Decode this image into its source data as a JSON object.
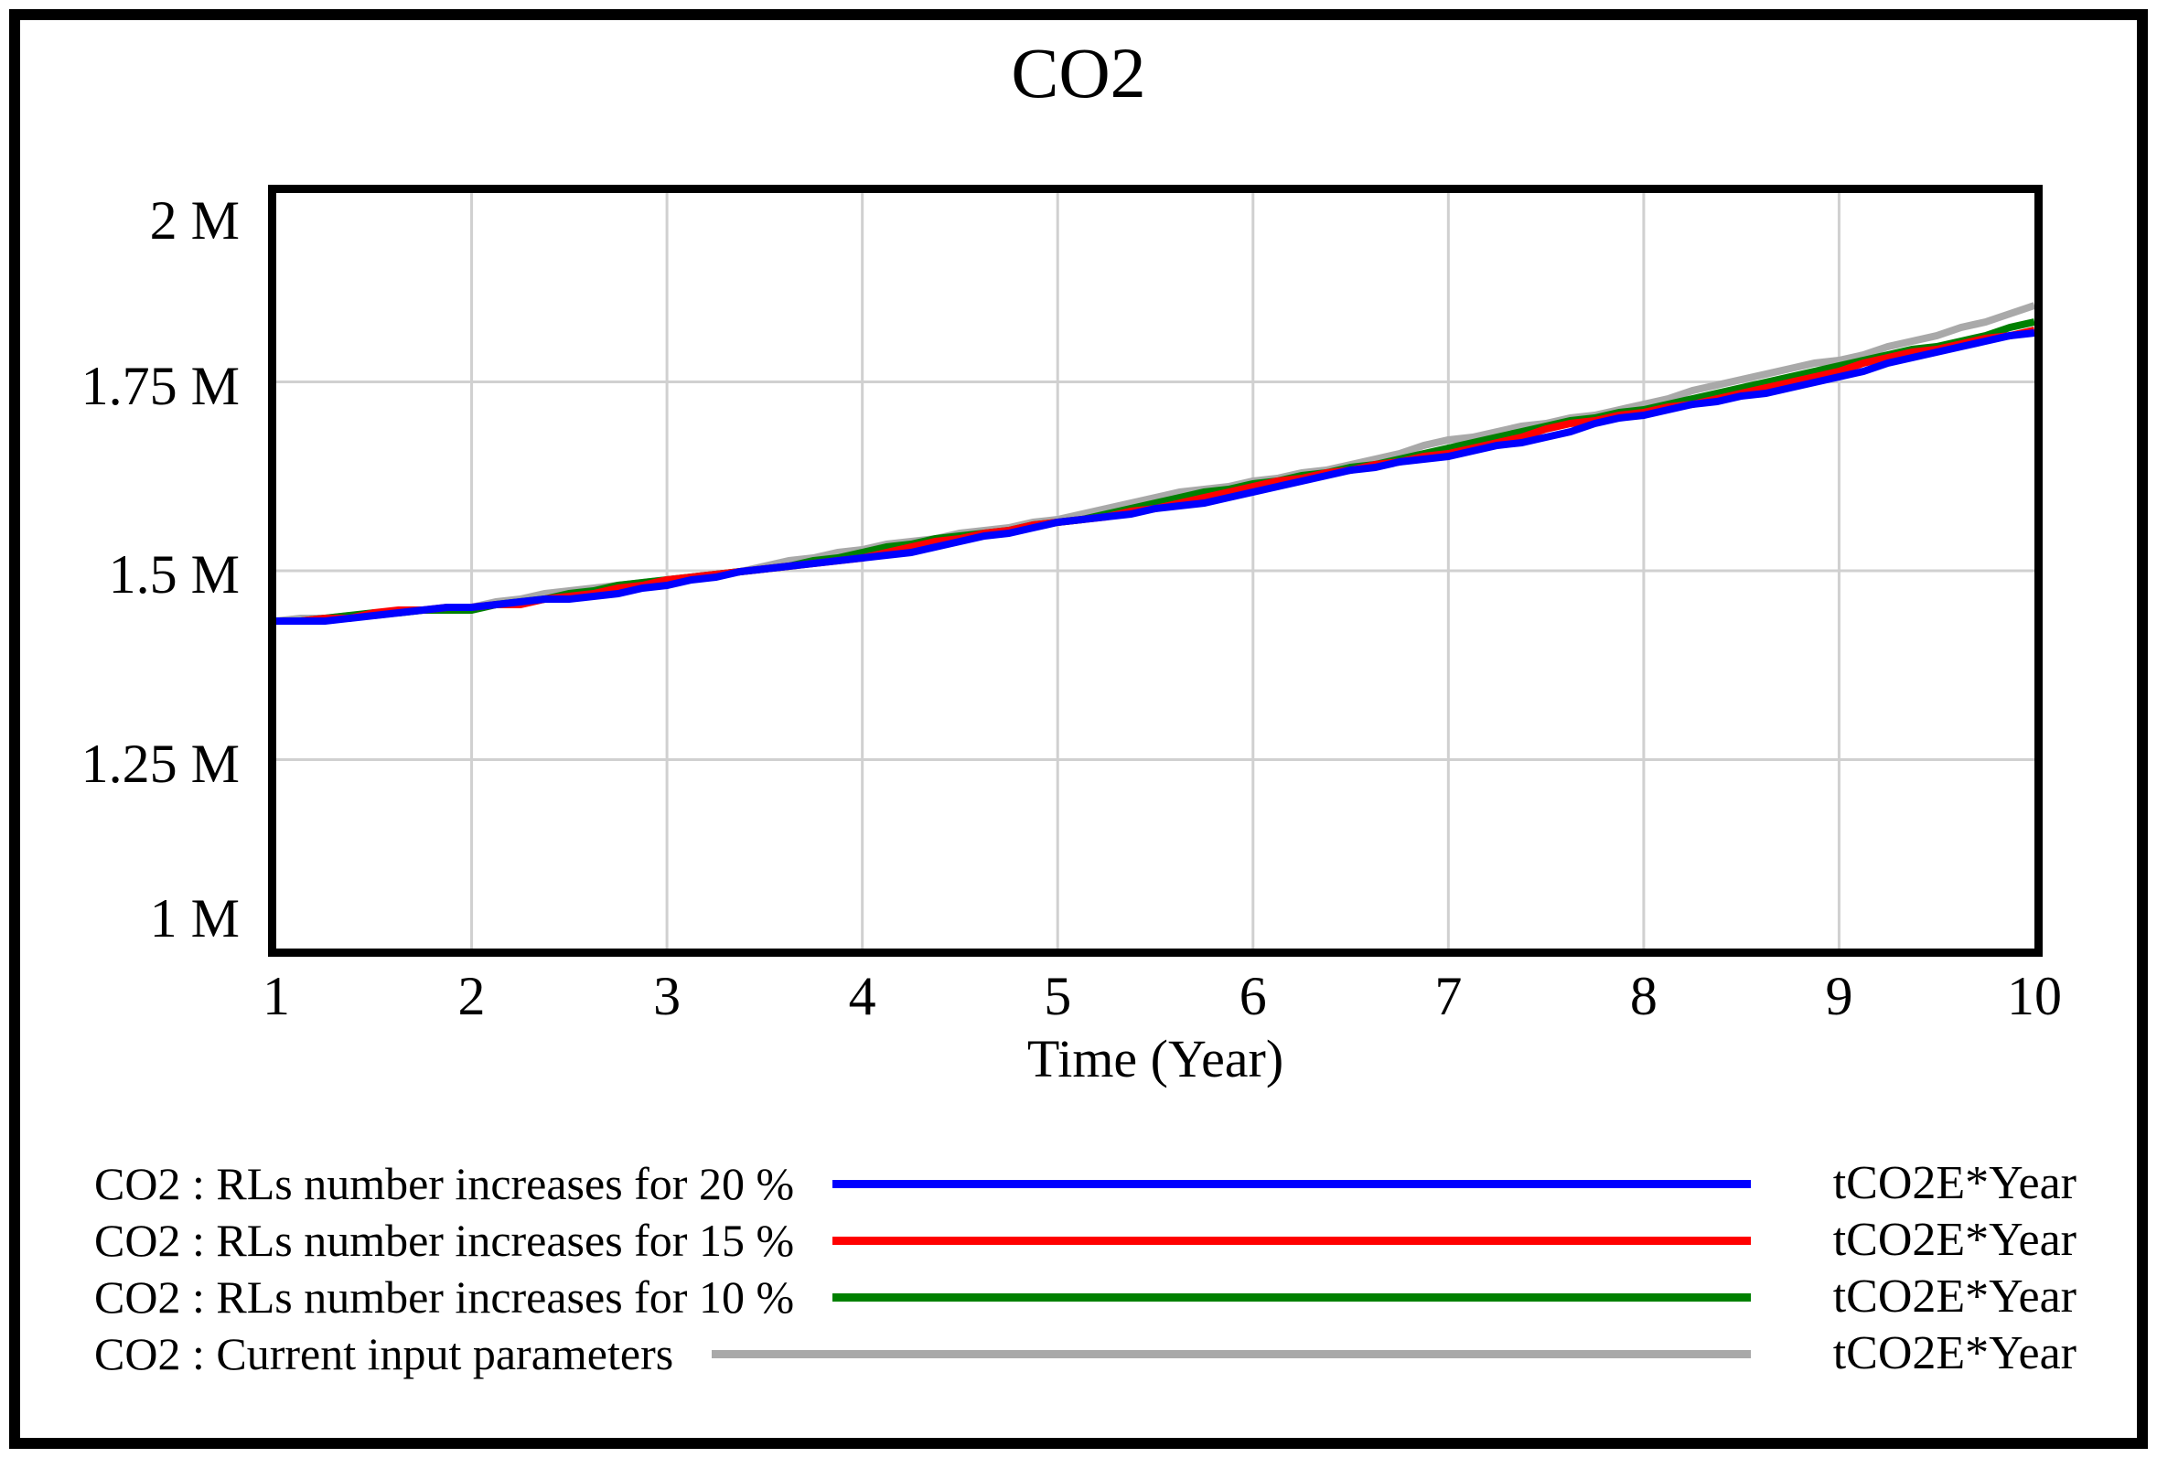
{
  "title": "CO2",
  "frame": {
    "background": "#ffffff",
    "border_color": "#000000"
  },
  "axes": {
    "x_label": "Time (Year)",
    "x_ticks": [
      {
        "value": 1,
        "label": "1"
      },
      {
        "value": 2,
        "label": "2"
      },
      {
        "value": 3,
        "label": "3"
      },
      {
        "value": 4,
        "label": "4"
      },
      {
        "value": 5,
        "label": "5"
      },
      {
        "value": 6,
        "label": "6"
      },
      {
        "value": 7,
        "label": "7"
      },
      {
        "value": 8,
        "label": "8"
      },
      {
        "value": 9,
        "label": "9"
      },
      {
        "value": 10,
        "label": "10"
      }
    ],
    "y_ticks": [
      {
        "value": 2000000,
        "label": "2 M"
      },
      {
        "value": 1750000,
        "label": "1.75 M"
      },
      {
        "value": 1500000,
        "label": "1.5 M"
      },
      {
        "value": 1250000,
        "label": "1.25 M"
      },
      {
        "value": 1000000,
        "label": "1 M"
      }
    ]
  },
  "chart_data": {
    "type": "line",
    "title": "CO2",
    "xlabel": "Time (Year)",
    "ylabel": "tCO2E*Year",
    "xlim": [
      1,
      10
    ],
    "ylim": [
      1000000,
      2000000
    ],
    "grid": true,
    "legend_position": "bottom",
    "colors": {
      "grid": "#d0d0d0",
      "axis": "#000000",
      "plot_background": "#ffffff"
    },
    "x": [
      1,
      2,
      3,
      4,
      5,
      6,
      7,
      8,
      9,
      10
    ],
    "series": [
      {
        "name": "CO2 : RLs number increases for 20 %",
        "units": "tCO2E*Year",
        "color": "#0000ff",
        "values": [
          1432000,
          1450000,
          1482000,
          1518000,
          1560000,
          1605000,
          1654000,
          1705000,
          1758000,
          1816000
        ]
      },
      {
        "name": "CO2 : RLs number increases for 15 %",
        "units": "tCO2E*Year",
        "color": "#ff0000",
        "values": [
          1433000,
          1451000,
          1484000,
          1521000,
          1563000,
          1609000,
          1659000,
          1710000,
          1764000,
          1822000
        ]
      },
      {
        "name": "CO2 : RLs number increases for 10 %",
        "units": "tCO2E*Year",
        "color": "#008000",
        "values": [
          1434000,
          1452000,
          1485000,
          1523000,
          1566000,
          1612000,
          1663000,
          1715000,
          1770000,
          1830000
        ]
      },
      {
        "name": "CO2 : Current input parameters",
        "units": "tCO2E*Year",
        "color": "#a9a9a9",
        "values": [
          1435000,
          1454000,
          1488000,
          1527000,
          1571000,
          1618000,
          1669000,
          1723000,
          1780000,
          1848000
        ]
      }
    ]
  }
}
